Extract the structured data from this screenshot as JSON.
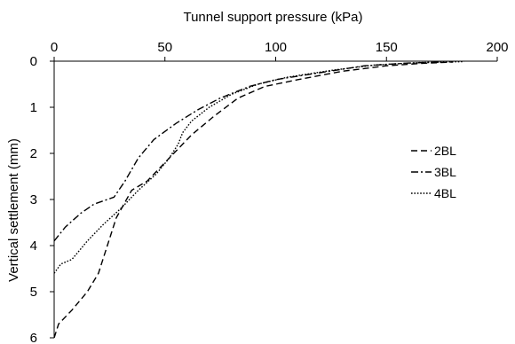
{
  "chart_data": {
    "type": "line",
    "xlabel": "Tunnel support pressure (kPa)",
    "ylabel": "Vertical settlement (mm)",
    "x_axis_position": "top",
    "y_axis_inverted": true,
    "xlim": [
      0,
      200
    ],
    "ylim": [
      0,
      6
    ],
    "x_ticks": [
      "0",
      "50",
      "100",
      "150",
      "200"
    ],
    "y_ticks": [
      "0",
      "1",
      "2",
      "3",
      "4",
      "5",
      "6"
    ],
    "grid": false,
    "legend_position": "right-middle",
    "series": [
      {
        "name": "2BL",
        "dash": "dashed",
        "color": "#000000",
        "points": [
          [
            0,
            6.0
          ],
          [
            2,
            5.7
          ],
          [
            8,
            5.4
          ],
          [
            15,
            5.0
          ],
          [
            20,
            4.6
          ],
          [
            24,
            4.0
          ],
          [
            28,
            3.4
          ],
          [
            35,
            2.8
          ],
          [
            42,
            2.6
          ],
          [
            52,
            2.1
          ],
          [
            62,
            1.6
          ],
          [
            72,
            1.2
          ],
          [
            83,
            0.8
          ],
          [
            95,
            0.55
          ],
          [
            110,
            0.4
          ],
          [
            130,
            0.22
          ],
          [
            150,
            0.1
          ],
          [
            165,
            0.05
          ],
          [
            180,
            0.02
          ]
        ]
      },
      {
        "name": "3BL",
        "dash": "dashdot",
        "color": "#000000",
        "points": [
          [
            0,
            3.9
          ],
          [
            5,
            3.6
          ],
          [
            12,
            3.3
          ],
          [
            18,
            3.1
          ],
          [
            27,
            2.95
          ],
          [
            32,
            2.6
          ],
          [
            38,
            2.1
          ],
          [
            45,
            1.7
          ],
          [
            55,
            1.35
          ],
          [
            65,
            1.05
          ],
          [
            75,
            0.8
          ],
          [
            88,
            0.55
          ],
          [
            100,
            0.4
          ],
          [
            120,
            0.25
          ],
          [
            140,
            0.1
          ],
          [
            160,
            0.04
          ],
          [
            175,
            0.02
          ]
        ]
      },
      {
        "name": "4BL",
        "dash": "dotted",
        "color": "#000000",
        "points": [
          [
            0,
            4.6
          ],
          [
            3,
            4.4
          ],
          [
            8,
            4.3
          ],
          [
            15,
            3.9
          ],
          [
            22,
            3.55
          ],
          [
            30,
            3.2
          ],
          [
            38,
            2.8
          ],
          [
            46,
            2.45
          ],
          [
            52,
            2.1
          ],
          [
            56,
            1.8
          ],
          [
            58,
            1.55
          ],
          [
            62,
            1.3
          ],
          [
            70,
            1.0
          ],
          [
            80,
            0.72
          ],
          [
            92,
            0.5
          ],
          [
            105,
            0.35
          ],
          [
            125,
            0.2
          ],
          [
            145,
            0.08
          ],
          [
            165,
            0.03
          ],
          [
            185,
            0.01
          ]
        ]
      }
    ]
  }
}
